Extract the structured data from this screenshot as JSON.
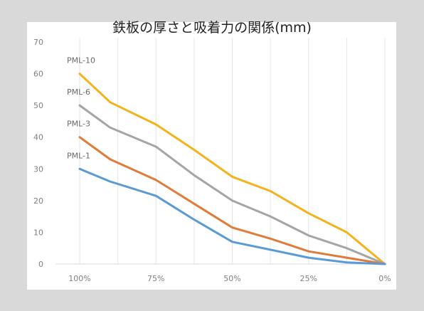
{
  "chart_data": {
    "type": "line",
    "title": "鉄板の厚さと吸着力の関係(mm)",
    "xlabel": "",
    "ylabel": "",
    "ylim": [
      0,
      70
    ],
    "y_ticks": [
      "0",
      "10",
      "20",
      "30",
      "40",
      "50",
      "60",
      "70"
    ],
    "x_ticks": [
      "100%",
      "75%",
      "50%",
      "25%",
      "0%"
    ],
    "x": [
      100,
      90,
      75,
      62.5,
      50,
      37.5,
      25,
      12.5,
      0
    ],
    "grid": "vertical",
    "series": [
      {
        "name": "PML-10",
        "color": "#f2b31c",
        "values": [
          60,
          51,
          44,
          36,
          27.5,
          23,
          16,
          10,
          0
        ]
      },
      {
        "name": "PML-6",
        "color": "#a5a5a5",
        "values": [
          50,
          43,
          37,
          28,
          20,
          15,
          9,
          5,
          0
        ]
      },
      {
        "name": "PML-3",
        "color": "#e07b39",
        "values": [
          40,
          33,
          26.5,
          19,
          11.5,
          8,
          4,
          2,
          0
        ]
      },
      {
        "name": "PML-1",
        "color": "#5b9bd5",
        "values": [
          30,
          26,
          21.5,
          14,
          7,
          4.5,
          2,
          0.5,
          0
        ]
      }
    ]
  }
}
